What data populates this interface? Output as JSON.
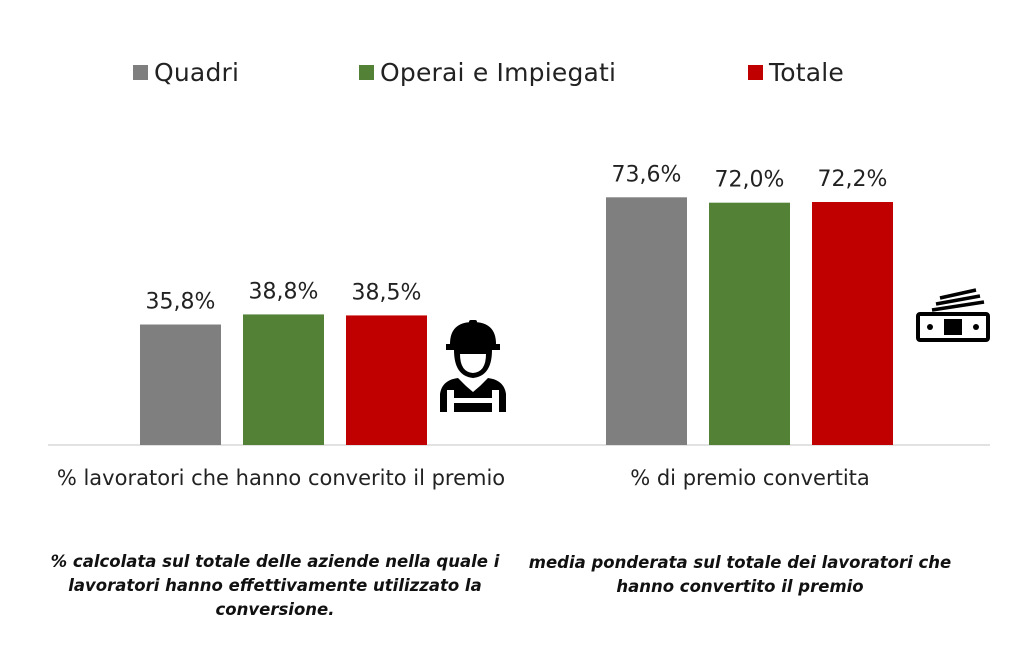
{
  "chart_data": {
    "type": "bar",
    "categories": [
      "% lavoratori che hanno converito il premio",
      "% di premio convertita"
    ],
    "series": [
      {
        "name": "Quadri",
        "color": "#7f7f7f",
        "values": [
          35.8,
          73.6
        ],
        "labels": [
          "35,8%",
          "73,6%"
        ]
      },
      {
        "name": "Operai e Impiegati",
        "color": "#538135",
        "values": [
          38.8,
          72.0
        ],
        "labels": [
          "38,8%",
          "72,0%"
        ]
      },
      {
        "name": "Totale",
        "color": "#c00000",
        "values": [
          38.5,
          72.2
        ],
        "labels": [
          "38,5%",
          "72,2%"
        ]
      }
    ],
    "ylim": [
      0,
      80
    ],
    "grid": false,
    "legend": "top",
    "value_labels": true
  },
  "notes": [
    "% calcolata sul totale delle aziende nella quale i lavoratori hanno effettivamente utilizzato la conversione.",
    "media ponderata sul totale dei lavoratori che hanno convertito il premio"
  ],
  "icons": [
    "worker-helmet-icon",
    "banknote-icon"
  ]
}
